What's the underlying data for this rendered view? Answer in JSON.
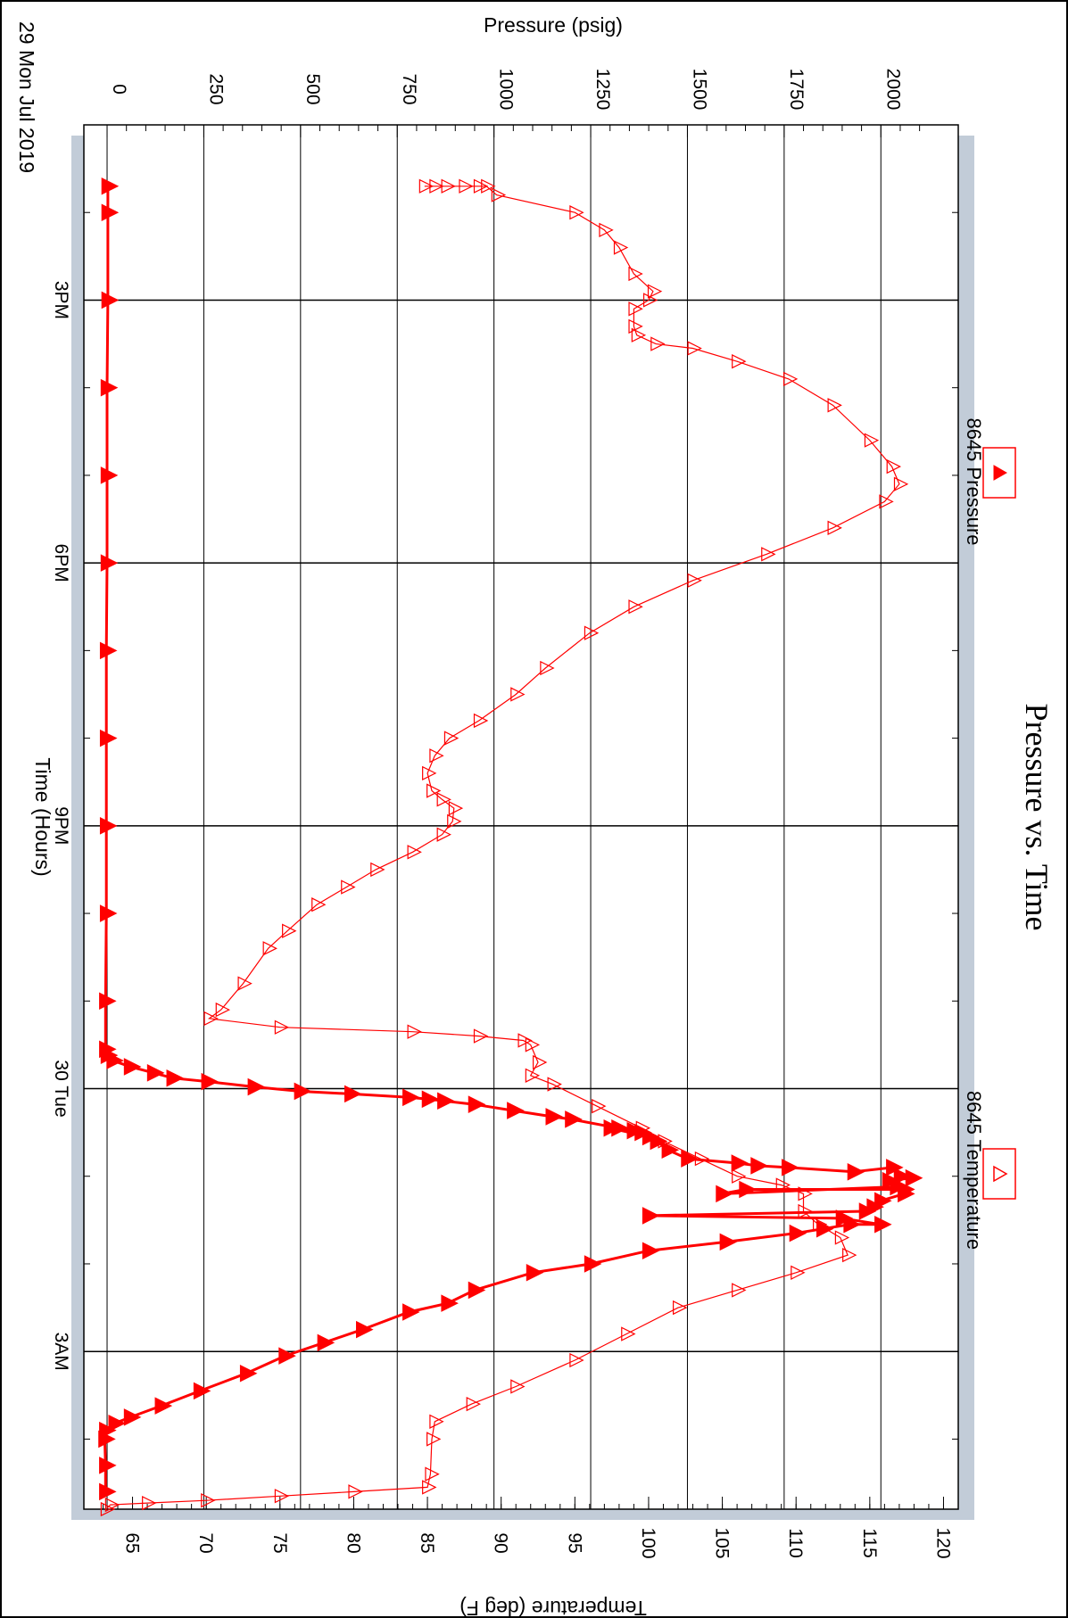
{
  "chart_data": {
    "type": "line",
    "title": "Pressure vs. Time",
    "xlabel": "Time (Hours)",
    "ylabel_left": "Pressure (psig)",
    "ylabel_right": "Temperature (deg F)",
    "date_label": "29 Mon Jul 2019",
    "orientation": "rotated-90-clockwise",
    "x_range_hours": [
      13.0,
      28.8
    ],
    "time_ticks": [
      "3PM",
      "6PM",
      "9PM",
      "30 Tue",
      "3AM"
    ],
    "pressure_ticks": [
      "0",
      "250",
      "500",
      "750",
      "1000",
      "1250",
      "1500",
      "1750",
      "2000"
    ],
    "temperature_ticks": [
      "65",
      "70",
      "75",
      "80",
      "85",
      "90",
      "95",
      "100",
      "105",
      "110",
      "115",
      "120"
    ],
    "pressure_range": [
      -60,
      2200
    ],
    "temperature_range": [
      61.7,
      121.0
    ],
    "grid": true,
    "colors": {
      "series": "#ff0000",
      "grid": "#000000",
      "margin": "#c2ccd8"
    },
    "series": [
      {
        "name": "8645 Pressure",
        "axis": "pressure",
        "marker": "filled-triangle",
        "points": [
          [
            13.7,
            2
          ],
          [
            14.0,
            2
          ],
          [
            15.0,
            2
          ],
          [
            16.0,
            0
          ],
          [
            17.0,
            0
          ],
          [
            18.0,
            0
          ],
          [
            19.0,
            -2
          ],
          [
            20.0,
            -2
          ],
          [
            21.0,
            -2
          ],
          [
            22.0,
            -2
          ],
          [
            23.0,
            -4
          ],
          [
            23.55,
            -4
          ],
          [
            23.62,
            0
          ],
          [
            23.68,
            15
          ],
          [
            23.75,
            60
          ],
          [
            23.82,
            120
          ],
          [
            23.88,
            170
          ],
          [
            23.92,
            260
          ],
          [
            23.98,
            380
          ],
          [
            24.03,
            500
          ],
          [
            24.06,
            630
          ],
          [
            24.1,
            780
          ],
          [
            24.12,
            830
          ],
          [
            24.14,
            870
          ],
          [
            24.18,
            950
          ],
          [
            24.25,
            1050
          ],
          [
            24.32,
            1150
          ],
          [
            24.35,
            1200
          ],
          [
            24.45,
            1320
          ],
          [
            24.5,
            1380
          ],
          [
            24.55,
            1400
          ],
          [
            24.45,
            1300
          ],
          [
            24.48,
            1360
          ],
          [
            24.6,
            1420
          ],
          [
            24.7,
            1450
          ],
          [
            24.8,
            1500
          ],
          [
            24.85,
            1630
          ],
          [
            24.88,
            1680
          ],
          [
            24.9,
            1760
          ],
          [
            24.95,
            1930
          ],
          [
            24.9,
            2030
          ],
          [
            25.0,
            2050
          ],
          [
            25.02,
            2080
          ],
          [
            25.05,
            2020
          ],
          [
            25.15,
            2060
          ],
          [
            25.15,
            1650
          ],
          [
            25.2,
            1590
          ],
          [
            25.12,
            2040
          ],
          [
            25.2,
            2060
          ],
          [
            25.28,
            2000
          ],
          [
            25.35,
            1980
          ],
          [
            25.4,
            1960
          ],
          [
            25.45,
            1400
          ],
          [
            25.48,
            1900
          ],
          [
            25.55,
            2000
          ],
          [
            25.55,
            1920
          ],
          [
            25.6,
            1850
          ],
          [
            25.65,
            1780
          ],
          [
            25.75,
            1600
          ],
          [
            25.85,
            1400
          ],
          [
            26.0,
            1250
          ],
          [
            26.1,
            1100
          ],
          [
            26.3,
            950
          ],
          [
            26.45,
            880
          ],
          [
            26.55,
            780
          ],
          [
            26.75,
            660
          ],
          [
            26.9,
            560
          ],
          [
            27.05,
            460
          ],
          [
            27.25,
            360
          ],
          [
            27.45,
            240
          ],
          [
            27.62,
            140
          ],
          [
            27.75,
            60
          ],
          [
            27.82,
            20
          ],
          [
            27.9,
            -4
          ],
          [
            28.0,
            -6
          ],
          [
            28.3,
            -4
          ],
          [
            28.6,
            -4
          ]
        ]
      },
      {
        "name": "8645 Temperature",
        "axis": "temperature",
        "marker": "open-triangle",
        "points": [
          [
            13.7,
            84.8
          ],
          [
            13.7,
            85.5
          ],
          [
            13.7,
            86.3
          ],
          [
            13.7,
            87.5
          ],
          [
            13.7,
            88.5
          ],
          [
            13.7,
            89.0
          ],
          [
            13.8,
            89.7
          ],
          [
            14.0,
            95.0
          ],
          [
            14.2,
            97.0
          ],
          [
            14.4,
            98.0
          ],
          [
            14.7,
            99.0
          ],
          [
            14.9,
            100.3
          ],
          [
            15.0,
            100.0
          ],
          [
            15.1,
            99.0
          ],
          [
            15.3,
            99.0
          ],
          [
            15.4,
            99.2
          ],
          [
            15.5,
            100.5
          ],
          [
            15.55,
            103.0
          ],
          [
            15.7,
            106.0
          ],
          [
            15.9,
            109.5
          ],
          [
            16.2,
            112.5
          ],
          [
            16.6,
            115.0
          ],
          [
            16.9,
            116.5
          ],
          [
            17.1,
            117.0
          ],
          [
            17.3,
            116.0
          ],
          [
            17.6,
            112.5
          ],
          [
            17.9,
            108.0
          ],
          [
            18.2,
            103.0
          ],
          [
            18.5,
            99.0
          ],
          [
            18.8,
            96.0
          ],
          [
            19.2,
            93.0
          ],
          [
            19.5,
            91.0
          ],
          [
            19.8,
            88.5
          ],
          [
            20.0,
            86.5
          ],
          [
            20.2,
            85.5
          ],
          [
            20.4,
            85.0
          ],
          [
            20.6,
            85.3
          ],
          [
            20.7,
            86.0
          ],
          [
            20.8,
            86.8
          ],
          [
            20.95,
            86.7
          ],
          [
            21.1,
            86.0
          ],
          [
            21.3,
            84.0
          ],
          [
            21.5,
            81.5
          ],
          [
            21.7,
            79.5
          ],
          [
            21.9,
            77.5
          ],
          [
            22.2,
            75.5
          ],
          [
            22.4,
            74.2
          ],
          [
            22.8,
            72.5
          ],
          [
            23.1,
            71.0
          ],
          [
            23.2,
            70.2
          ],
          [
            23.3,
            75.0
          ],
          [
            23.35,
            84.0
          ],
          [
            23.4,
            88.5
          ],
          [
            23.45,
            91.5
          ],
          [
            23.5,
            92.0
          ],
          [
            23.7,
            92.5
          ],
          [
            23.85,
            92.0
          ],
          [
            23.95,
            93.5
          ],
          [
            24.2,
            96.5
          ],
          [
            24.45,
            99.5
          ],
          [
            24.6,
            101.0
          ],
          [
            24.8,
            103.5
          ],
          [
            25.0,
            106.0
          ],
          [
            25.1,
            109.0
          ],
          [
            25.2,
            110.5
          ],
          [
            25.4,
            110.5
          ],
          [
            25.55,
            111.5
          ],
          [
            25.7,
            113.0
          ],
          [
            25.9,
            113.5
          ],
          [
            26.1,
            110.0
          ],
          [
            26.3,
            106.0
          ],
          [
            26.5,
            102.0
          ],
          [
            26.8,
            98.5
          ],
          [
            27.1,
            95.0
          ],
          [
            27.4,
            91.0
          ],
          [
            27.6,
            88.0
          ],
          [
            27.8,
            85.5
          ],
          [
            28.0,
            85.3
          ],
          [
            28.4,
            85.2
          ],
          [
            28.55,
            85.0
          ],
          [
            28.6,
            80.0
          ],
          [
            28.65,
            75.0
          ],
          [
            28.7,
            70.0
          ],
          [
            28.73,
            66.0
          ],
          [
            28.75,
            63.5
          ],
          [
            28.8,
            63.2
          ]
        ]
      }
    ],
    "legend": [
      {
        "name": "8645 Pressure",
        "marker": "filled-triangle"
      },
      {
        "name": "8645 Temperature",
        "marker": "open-triangle"
      }
    ]
  }
}
